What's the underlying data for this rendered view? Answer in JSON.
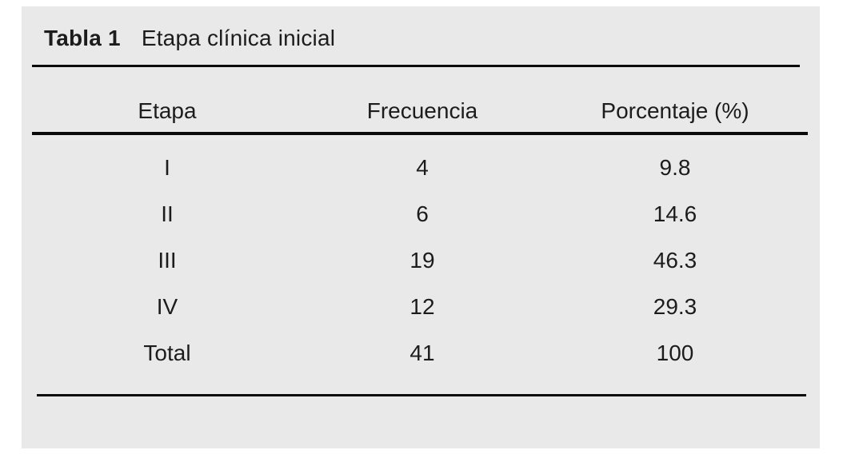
{
  "table": {
    "label": "Tabla 1",
    "caption": "Etapa clínica inicial",
    "headers": [
      "Etapa",
      "Frecuencia",
      "Porcentaje (%)"
    ],
    "rows": [
      [
        "I",
        "4",
        "9.8"
      ],
      [
        "II",
        "6",
        "14.6"
      ],
      [
        "III",
        "19",
        "46.3"
      ],
      [
        "IV",
        "12",
        "29.3"
      ],
      [
        "Total",
        "41",
        "100"
      ]
    ]
  },
  "colors": {
    "panel_background": "#e9e9e9",
    "page_background": "#ffffff",
    "text": "#1c1c1c",
    "rule": "#0b0b0b"
  }
}
